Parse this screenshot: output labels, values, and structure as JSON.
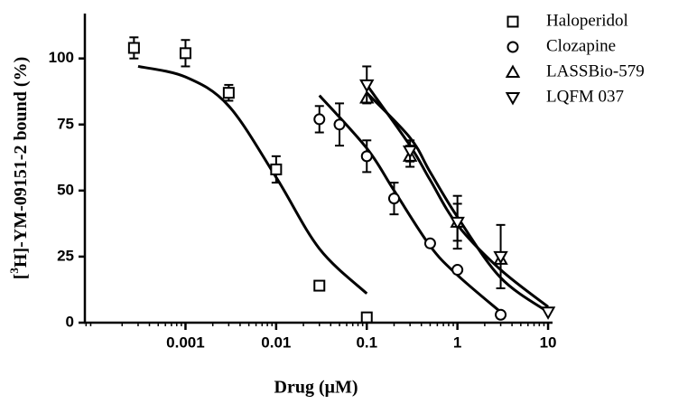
{
  "chart_data": {
    "type": "scatter",
    "x_label": "Drug (μM)",
    "y_label": [
      "[",
      "3",
      "H]-YM-09151-2 bound (%)"
    ],
    "log_x": true,
    "xlim": [
      7.76e-05,
      11.2
    ],
    "xticks": [
      0.001,
      0.01,
      0.1,
      1,
      10
    ],
    "ylim": [
      0,
      117
    ],
    "yticks": [
      0,
      25,
      50,
      75,
      100
    ],
    "legend": "top-right",
    "series": [
      {
        "name": "Haloperidol",
        "marker": "square",
        "color": "#000000",
        "x": [
          0.00027,
          0.001,
          0.003,
          0.01,
          0.03,
          0.1
        ],
        "values": [
          104,
          102,
          87,
          58,
          14,
          2
        ],
        "errors": [
          4,
          5,
          3,
          5,
          null,
          null
        ],
        "fit_x": [
          0.0003,
          0.001,
          0.003,
          0.01,
          0.03,
          0.1
        ],
        "fit_values": [
          97,
          93,
          82,
          55,
          28,
          11
        ]
      },
      {
        "name": "Clozapine",
        "marker": "circle",
        "color": "#000000",
        "x": [
          0.03,
          0.05,
          0.1,
          0.2,
          0.5,
          1,
          3
        ],
        "values": [
          77,
          75,
          63,
          47,
          30,
          20,
          3
        ],
        "errors": [
          5,
          8,
          6,
          6,
          null,
          null,
          null
        ],
        "fit_x": [
          0.03,
          0.1,
          0.2,
          0.5,
          1,
          3
        ],
        "fit_values": [
          86,
          66,
          50,
          29,
          18,
          4
        ]
      },
      {
        "name": "LASSBio-579",
        "marker": "triangle-up",
        "color": "#000000",
        "x": [
          0.1,
          0.3,
          1,
          3
        ],
        "values": [
          85,
          63,
          38,
          24
        ],
        "errors": [
          null,
          4,
          7,
          null
        ],
        "fit_x": [
          0.1,
          0.3,
          0.5,
          1,
          3,
          10
        ],
        "fit_values": [
          87,
          70,
          57,
          40,
          17,
          4
        ]
      },
      {
        "name": "LQFM 037",
        "marker": "triangle-down",
        "color": "#000000",
        "x": [
          0.1,
          0.3,
          1,
          3,
          10
        ],
        "values": [
          90,
          65,
          38,
          25,
          4
        ],
        "errors": [
          7,
          4,
          10,
          12,
          null
        ],
        "fit_x": [
          0.1,
          0.3,
          0.5,
          1,
          3,
          10
        ],
        "fit_values": [
          90,
          67,
          54,
          37,
          20,
          6
        ]
      }
    ]
  }
}
